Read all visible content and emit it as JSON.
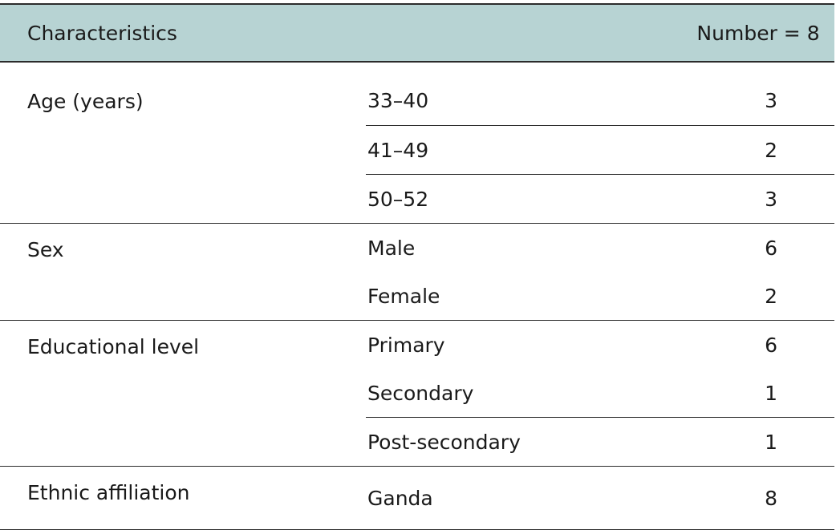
{
  "table": {
    "header": {
      "characteristics": "Characteristics",
      "number": "Number = 8"
    },
    "groups": [
      {
        "name": "Age (years)",
        "rows": [
          {
            "label": "33–40",
            "value": "3"
          },
          {
            "label": "41–49",
            "value": "2"
          },
          {
            "label": "50–52",
            "value": "3"
          }
        ]
      },
      {
        "name": "Sex",
        "rows": [
          {
            "label": "Male",
            "value": "6"
          },
          {
            "label": "Female",
            "value": "2"
          }
        ]
      },
      {
        "name": "Educational level",
        "rows": [
          {
            "label": "Primary",
            "value": "6"
          },
          {
            "label": "Secondary",
            "value": "1"
          },
          {
            "label": "Post-secondary",
            "value": "1"
          }
        ]
      },
      {
        "name": "Ethnic affiliation",
        "rows": [
          {
            "label": "Ganda",
            "value": "8"
          }
        ]
      }
    ]
  }
}
